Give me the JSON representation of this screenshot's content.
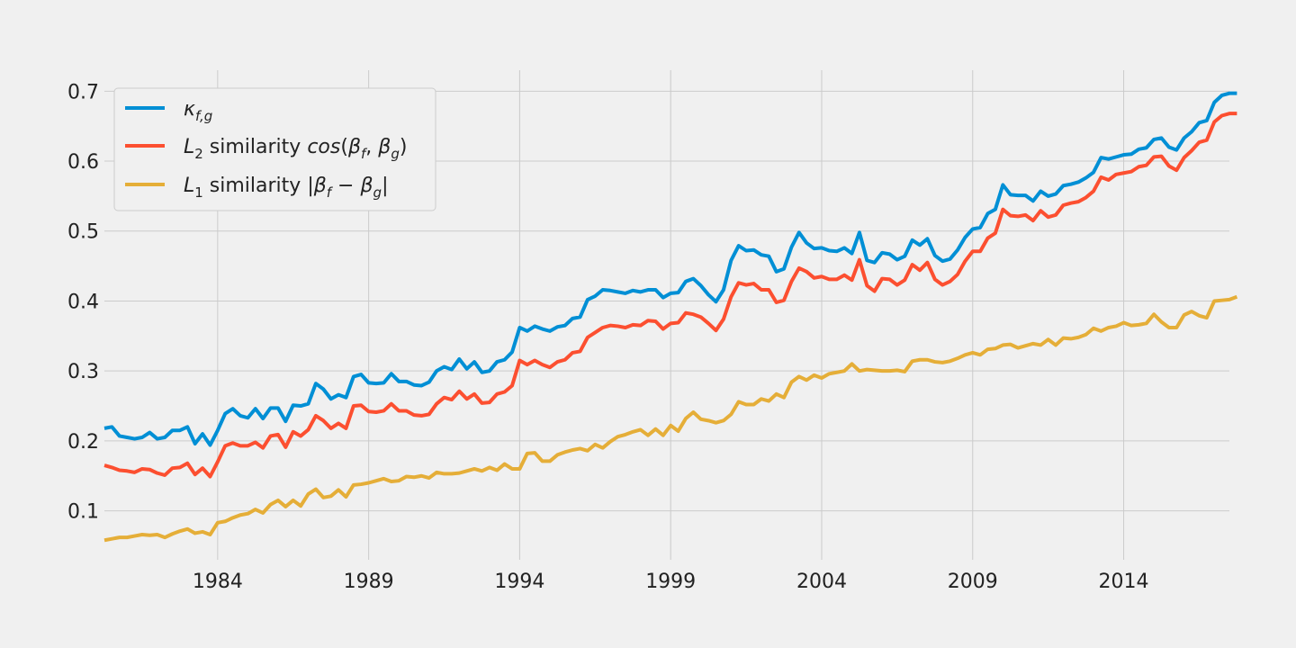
{
  "chart_data": {
    "type": "line",
    "x_start": 1980.25,
    "x_step": 0.25,
    "xlim": [
      1980.25,
      2017.5
    ],
    "ylim": [
      0.03,
      0.73
    ],
    "x_ticks": [
      1984,
      1989,
      1994,
      1999,
      2004,
      2009,
      2014
    ],
    "x_tick_labels": [
      "1984",
      "1989",
      "1994",
      "1999",
      "2004",
      "2009",
      "2014"
    ],
    "y_ticks": [
      0.1,
      0.2,
      0.3,
      0.4,
      0.5,
      0.6,
      0.7
    ],
    "y_tick_labels": [
      "0.1",
      "0.2",
      "0.3",
      "0.4",
      "0.5",
      "0.6",
      "0.7"
    ],
    "grid": true,
    "legend_position": "top-left",
    "series": [
      {
        "name": "κf,g",
        "color": "#008fd5",
        "values": [
          0.218,
          0.22,
          0.207,
          0.205,
          0.203,
          0.205,
          0.212,
          0.203,
          0.205,
          0.215,
          0.215,
          0.22,
          0.196,
          0.21,
          0.194,
          0.215,
          0.239,
          0.246,
          0.236,
          0.233,
          0.246,
          0.232,
          0.247,
          0.247,
          0.228,
          0.251,
          0.25,
          0.253,
          0.282,
          0.274,
          0.26,
          0.266,
          0.262,
          0.292,
          0.295,
          0.283,
          0.282,
          0.283,
          0.296,
          0.285,
          0.285,
          0.28,
          0.279,
          0.284,
          0.3,
          0.306,
          0.302,
          0.317,
          0.303,
          0.313,
          0.298,
          0.3,
          0.313,
          0.316,
          0.327,
          0.362,
          0.357,
          0.364,
          0.36,
          0.357,
          0.363,
          0.365,
          0.375,
          0.377,
          0.402,
          0.407,
          0.416,
          0.415,
          0.413,
          0.411,
          0.415,
          0.413,
          0.416,
          0.416,
          0.405,
          0.411,
          0.412,
          0.428,
          0.432,
          0.422,
          0.409,
          0.399,
          0.416,
          0.458,
          0.479,
          0.472,
          0.473,
          0.466,
          0.464,
          0.442,
          0.446,
          0.477,
          0.498,
          0.483,
          0.475,
          0.476,
          0.472,
          0.471,
          0.476,
          0.468,
          0.498,
          0.458,
          0.455,
          0.469,
          0.467,
          0.459,
          0.464,
          0.487,
          0.48,
          0.489,
          0.465,
          0.457,
          0.46,
          0.473,
          0.491,
          0.503,
          0.505,
          0.525,
          0.531,
          0.566,
          0.552,
          0.551,
          0.551,
          0.543,
          0.557,
          0.55,
          0.553,
          0.565,
          0.567,
          0.57,
          0.576,
          0.584,
          0.605,
          0.603,
          0.606,
          0.609,
          0.61,
          0.617,
          0.619,
          0.631,
          0.633,
          0.62,
          0.616,
          0.633,
          0.642,
          0.655,
          0.658,
          0.684,
          0.694,
          0.697,
          0.697
        ]
      },
      {
        "name": "L2 similarity cos(βf,βg)",
        "color": "#fc4f30",
        "values": [
          0.165,
          0.162,
          0.158,
          0.157,
          0.155,
          0.16,
          0.159,
          0.154,
          0.151,
          0.161,
          0.162,
          0.168,
          0.152,
          0.161,
          0.149,
          0.17,
          0.193,
          0.197,
          0.193,
          0.193,
          0.198,
          0.19,
          0.207,
          0.209,
          0.191,
          0.213,
          0.207,
          0.216,
          0.236,
          0.229,
          0.218,
          0.225,
          0.218,
          0.25,
          0.251,
          0.242,
          0.241,
          0.243,
          0.253,
          0.243,
          0.243,
          0.237,
          0.236,
          0.238,
          0.253,
          0.262,
          0.259,
          0.271,
          0.26,
          0.267,
          0.254,
          0.255,
          0.267,
          0.27,
          0.279,
          0.315,
          0.309,
          0.315,
          0.309,
          0.305,
          0.313,
          0.316,
          0.326,
          0.328,
          0.348,
          0.355,
          0.362,
          0.365,
          0.364,
          0.362,
          0.366,
          0.365,
          0.372,
          0.371,
          0.36,
          0.368,
          0.369,
          0.383,
          0.381,
          0.377,
          0.368,
          0.358,
          0.374,
          0.406,
          0.426,
          0.423,
          0.425,
          0.416,
          0.416,
          0.398,
          0.401,
          0.428,
          0.447,
          0.442,
          0.433,
          0.435,
          0.431,
          0.431,
          0.437,
          0.43,
          0.459,
          0.422,
          0.414,
          0.432,
          0.431,
          0.423,
          0.43,
          0.452,
          0.444,
          0.455,
          0.431,
          0.423,
          0.428,
          0.438,
          0.457,
          0.471,
          0.471,
          0.49,
          0.497,
          0.531,
          0.522,
          0.521,
          0.523,
          0.515,
          0.529,
          0.52,
          0.523,
          0.537,
          0.54,
          0.542,
          0.548,
          0.557,
          0.577,
          0.573,
          0.581,
          0.583,
          0.585,
          0.592,
          0.594,
          0.606,
          0.607,
          0.593,
          0.587,
          0.605,
          0.615,
          0.627,
          0.63,
          0.656,
          0.665,
          0.668,
          0.668
        ]
      },
      {
        "name": "L1 similarity |βf − βg|",
        "color": "#e5ae38",
        "values": [
          0.058,
          0.06,
          0.062,
          0.062,
          0.064,
          0.066,
          0.065,
          0.066,
          0.062,
          0.067,
          0.071,
          0.074,
          0.068,
          0.07,
          0.066,
          0.083,
          0.085,
          0.09,
          0.094,
          0.096,
          0.102,
          0.097,
          0.109,
          0.115,
          0.106,
          0.115,
          0.107,
          0.124,
          0.131,
          0.119,
          0.121,
          0.13,
          0.12,
          0.137,
          0.138,
          0.14,
          0.143,
          0.146,
          0.142,
          0.143,
          0.149,
          0.148,
          0.15,
          0.147,
          0.155,
          0.153,
          0.153,
          0.154,
          0.157,
          0.16,
          0.157,
          0.162,
          0.158,
          0.167,
          0.16,
          0.16,
          0.182,
          0.183,
          0.171,
          0.171,
          0.18,
          0.184,
          0.187,
          0.189,
          0.186,
          0.195,
          0.19,
          0.199,
          0.206,
          0.209,
          0.213,
          0.216,
          0.208,
          0.217,
          0.208,
          0.222,
          0.214,
          0.232,
          0.241,
          0.231,
          0.229,
          0.226,
          0.229,
          0.238,
          0.256,
          0.252,
          0.252,
          0.26,
          0.257,
          0.267,
          0.262,
          0.284,
          0.292,
          0.287,
          0.294,
          0.29,
          0.296,
          0.298,
          0.3,
          0.31,
          0.3,
          0.302,
          0.301,
          0.3,
          0.3,
          0.301,
          0.299,
          0.314,
          0.316,
          0.316,
          0.313,
          0.312,
          0.314,
          0.318,
          0.323,
          0.326,
          0.323,
          0.331,
          0.332,
          0.337,
          0.338,
          0.333,
          0.336,
          0.339,
          0.337,
          0.345,
          0.337,
          0.347,
          0.346,
          0.348,
          0.352,
          0.361,
          0.357,
          0.362,
          0.364,
          0.369,
          0.365,
          0.366,
          0.368,
          0.381,
          0.37,
          0.362,
          0.362,
          0.38,
          0.385,
          0.379,
          0.376,
          0.4,
          0.401,
          0.402,
          0.406
        ]
      }
    ]
  }
}
